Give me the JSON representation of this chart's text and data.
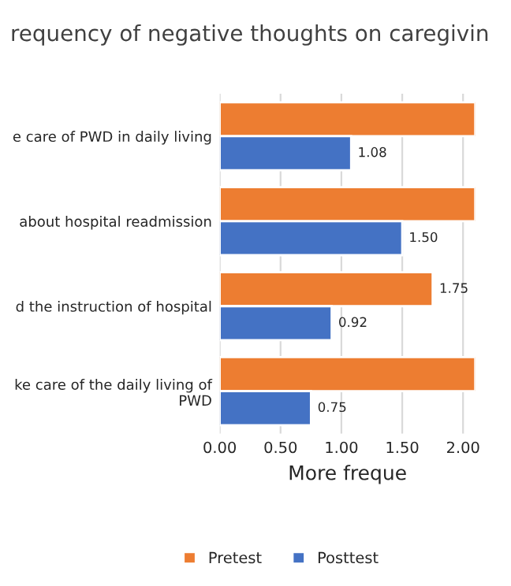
{
  "chart_data": {
    "type": "bar",
    "orientation": "horizontal",
    "title": "requency of negative thoughts on caregivin",
    "categories": [
      "e care of PWD in daily living",
      "about hospital readmission",
      "d the instruction of hospital",
      "ke care of the daily living of\nPWD"
    ],
    "series": [
      {
        "name": "Pretest",
        "color": "#ed7d31",
        "values": [
          2.1,
          2.1,
          1.75,
          2.1
        ],
        "value_labels": [
          null,
          null,
          "1.75",
          null
        ]
      },
      {
        "name": "Posttest",
        "color": "#4472c4",
        "values": [
          1.08,
          1.5,
          0.92,
          0.75
        ],
        "value_labels": [
          "1.08",
          "1.50",
          "0.92",
          "0.75"
        ]
      }
    ],
    "xlabel": "More freque",
    "xlim": [
      0,
      2.1
    ],
    "xticks": [
      {
        "value": 0,
        "label": "0.00"
      },
      {
        "value": 0.5,
        "label": "0.50"
      },
      {
        "value": 1,
        "label": "1.00"
      },
      {
        "value": 1.5,
        "label": "1.50"
      },
      {
        "value": 2,
        "label": "2.00"
      }
    ],
    "grid": "x",
    "legend": "bottom"
  }
}
